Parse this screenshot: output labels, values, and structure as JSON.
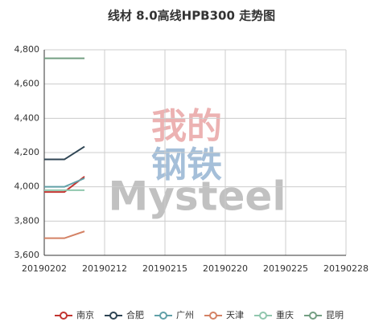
{
  "chart_data": {
    "type": "line",
    "title": "线材 8.0高线HPB300 走势图",
    "watermark": [
      "我的",
      "钢铁",
      "Mysteel"
    ],
    "categories": [
      "20190202",
      null,
      null,
      "20190212",
      null,
      null,
      "20190215",
      null,
      null,
      "20190220",
      null,
      null,
      "20190225",
      null,
      null,
      "20190228"
    ],
    "series": [
      {
        "name": "南京",
        "color": "#c23531",
        "values": [
          3970,
          3970,
          4060,
          null,
          null,
          null,
          null,
          null,
          null,
          null,
          null,
          null,
          null,
          null,
          null,
          null
        ]
      },
      {
        "name": "合肥",
        "color": "#2f4554",
        "values": [
          4160,
          4160,
          4235,
          null,
          null,
          null,
          null,
          null,
          null,
          null,
          null,
          null,
          null,
          null,
          null,
          null
        ]
      },
      {
        "name": "广州",
        "color": "#61a0a8",
        "values": [
          4000,
          4000,
          4050,
          null,
          null,
          null,
          null,
          null,
          null,
          null,
          null,
          null,
          null,
          null,
          null,
          null
        ]
      },
      {
        "name": "天津",
        "color": "#d48265",
        "values": [
          3700,
          3700,
          3740,
          null,
          null,
          null,
          null,
          null,
          null,
          null,
          null,
          null,
          null,
          null,
          null,
          null
        ]
      },
      {
        "name": "重庆",
        "color": "#91c7ae",
        "values": [
          3980,
          3980,
          3980,
          null,
          null,
          null,
          null,
          null,
          null,
          null,
          null,
          null,
          null,
          null,
          null,
          null
        ]
      },
      {
        "name": "昆明",
        "color": "#749f83",
        "values": [
          4750,
          4750,
          4750,
          null,
          null,
          null,
          null,
          null,
          null,
          null,
          null,
          null,
          null,
          null,
          null,
          null
        ]
      }
    ],
    "ylim": [
      3600,
      4800
    ],
    "yticks": [
      {
        "value": 3600,
        "label": "3,600"
      },
      {
        "value": 3800,
        "label": "3,800"
      },
      {
        "value": 4000,
        "label": "4,000"
      },
      {
        "value": 4200,
        "label": "4,200"
      },
      {
        "value": 4400,
        "label": "4,400"
      },
      {
        "value": 4600,
        "label": "4,600"
      },
      {
        "value": 4800,
        "label": "4,800"
      }
    ],
    "grid": true
  }
}
